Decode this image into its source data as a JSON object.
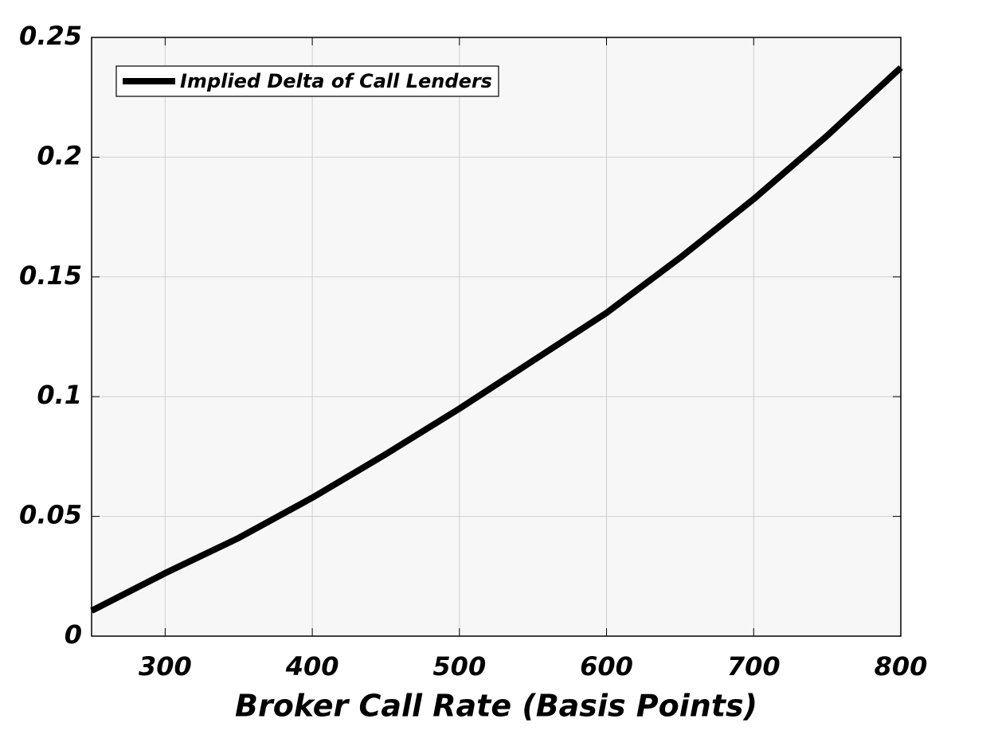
{
  "chart_data": {
    "type": "line",
    "xlabel": "Broker Call Rate (Basis Points)",
    "x": [
      250,
      300,
      350,
      400,
      450,
      500,
      550,
      600,
      650,
      700,
      750,
      800
    ],
    "series": [
      {
        "name": "Implied Delta of Call Lenders",
        "color": "#000000",
        "values": [
          0.0106,
          0.0263,
          0.041,
          0.0578,
          0.076,
          0.095,
          0.115,
          0.135,
          0.158,
          0.1825,
          0.209,
          0.2374
        ]
      }
    ],
    "xlim": [
      250,
      800
    ],
    "xticks": [
      300,
      400,
      500,
      600,
      700,
      800
    ],
    "ylim": [
      0,
      0.25
    ],
    "yticks": [
      0,
      0.05,
      0.1,
      0.15,
      0.2,
      0.25
    ],
    "grid": true,
    "legend": "upper-left"
  }
}
